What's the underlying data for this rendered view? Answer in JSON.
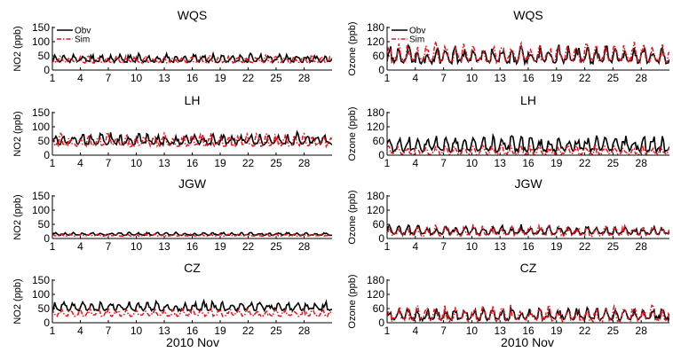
{
  "figure": {
    "xlabel_left": "2010 Nov",
    "xlabel_right": "2010 Nov"
  },
  "chart_data": [
    {
      "type": "line",
      "title": "WQS",
      "ylabel": "NO2 (ppb)",
      "ylim": [
        0,
        150
      ],
      "yticks": [
        0,
        50,
        100,
        150
      ],
      "xlim": [
        1,
        31
      ],
      "xticks": [
        1,
        4,
        7,
        10,
        13,
        16,
        19,
        22,
        25,
        28
      ],
      "legend": "top-left",
      "series": [
        {
          "name": "Obv",
          "color": "#000000",
          "style": "solid",
          "base": 30,
          "amp": 22,
          "phase": 0.0,
          "seed": 11
        },
        {
          "name": "Sim",
          "color": "#e8141c",
          "style": "dashed",
          "base": 27,
          "amp": 20,
          "phase": 0.35,
          "seed": 12
        }
      ]
    },
    {
      "type": "line",
      "title": "WQS",
      "ylabel": "Ozone (ppb)",
      "ylim": [
        0,
        180
      ],
      "yticks": [
        0,
        60,
        120,
        180
      ],
      "xlim": [
        1,
        31
      ],
      "xticks": [
        1,
        4,
        7,
        10,
        13,
        16,
        19,
        22,
        25,
        28
      ],
      "legend": "top-left",
      "series": [
        {
          "name": "Obv",
          "color": "#000000",
          "style": "solid",
          "base": 35,
          "amp": 55,
          "phase": 0.0,
          "seed": 21
        },
        {
          "name": "Sim",
          "color": "#e8141c",
          "style": "dashed",
          "base": 40,
          "amp": 60,
          "phase": 0.05,
          "seed": 22
        }
      ]
    },
    {
      "type": "line",
      "title": "LH",
      "ylabel": "NO2 (ppb)",
      "ylim": [
        0,
        150
      ],
      "yticks": [
        0,
        50,
        100,
        150
      ],
      "xlim": [
        1,
        31
      ],
      "xticks": [
        1,
        4,
        7,
        10,
        13,
        16,
        19,
        22,
        25,
        28
      ],
      "series": [
        {
          "name": "Obv",
          "color": "#000000",
          "style": "solid",
          "base": 40,
          "amp": 30,
          "phase": 0.0,
          "seed": 31
        },
        {
          "name": "Sim",
          "color": "#e8141c",
          "style": "dashed",
          "base": 35,
          "amp": 35,
          "phase": 0.3,
          "seed": 32
        }
      ]
    },
    {
      "type": "line",
      "title": "LH",
      "ylabel": "Ozone (ppb)",
      "ylim": [
        0,
        180
      ],
      "yticks": [
        0,
        60,
        120,
        180
      ],
      "xlim": [
        1,
        31
      ],
      "xticks": [
        1,
        4,
        7,
        10,
        13,
        16,
        19,
        22,
        25,
        28
      ],
      "series": [
        {
          "name": "Obv",
          "color": "#000000",
          "style": "solid",
          "base": 20,
          "amp": 50,
          "phase": 0.0,
          "seed": 41
        },
        {
          "name": "Sim",
          "color": "#e8141c",
          "style": "dashed",
          "base": 5,
          "amp": 30,
          "phase": 0.1,
          "seed": 42
        }
      ]
    },
    {
      "type": "line",
      "title": "JGW",
      "ylabel": "NO2 (ppb)",
      "ylim": [
        0,
        150
      ],
      "yticks": [
        0,
        50,
        100,
        150
      ],
      "xlim": [
        1,
        31
      ],
      "xticks": [
        1,
        4,
        7,
        10,
        13,
        16,
        19,
        22,
        25,
        28
      ],
      "series": [
        {
          "name": "Obv",
          "color": "#000000",
          "style": "solid",
          "base": 12,
          "amp": 8,
          "phase": 0.0,
          "seed": 51
        },
        {
          "name": "Sim",
          "color": "#e8141c",
          "style": "dashed",
          "base": 9,
          "amp": 6,
          "phase": 0.3,
          "seed": 52
        }
      ]
    },
    {
      "type": "line",
      "title": "JGW",
      "ylabel": "Ozone (ppb)",
      "ylim": [
        0,
        180
      ],
      "yticks": [
        0,
        60,
        120,
        180
      ],
      "xlim": [
        1,
        31
      ],
      "xticks": [
        1,
        4,
        7,
        10,
        13,
        16,
        19,
        22,
        25,
        28
      ],
      "series": [
        {
          "name": "Obv",
          "color": "#000000",
          "style": "solid",
          "base": 20,
          "amp": 28,
          "phase": 0.0,
          "seed": 61
        },
        {
          "name": "Sim",
          "color": "#e8141c",
          "style": "dashed",
          "base": 15,
          "amp": 32,
          "phase": 0.05,
          "seed": 62
        }
      ]
    },
    {
      "type": "line",
      "title": "CZ",
      "ylabel": "NO2 (ppb)",
      "ylim": [
        0,
        150
      ],
      "yticks": [
        0,
        50,
        100,
        150
      ],
      "xlim": [
        1,
        31
      ],
      "xticks": [
        1,
        4,
        7,
        10,
        13,
        16,
        19,
        22,
        25,
        28
      ],
      "series": [
        {
          "name": "Obv",
          "color": "#000000",
          "style": "solid",
          "base": 45,
          "amp": 25,
          "phase": 0.0,
          "seed": 71
        },
        {
          "name": "Sim",
          "color": "#e8141c",
          "style": "dashed",
          "base": 25,
          "amp": 20,
          "phase": 0.3,
          "seed": 72
        }
      ]
    },
    {
      "type": "line",
      "title": "CZ",
      "ylabel": "Ozone (ppb)",
      "ylim": [
        0,
        180
      ],
      "yticks": [
        0,
        60,
        120,
        180
      ],
      "xlim": [
        1,
        31
      ],
      "xticks": [
        1,
        4,
        7,
        10,
        13,
        16,
        19,
        22,
        25,
        28
      ],
      "series": [
        {
          "name": "Obv",
          "color": "#000000",
          "style": "solid",
          "base": 15,
          "amp": 40,
          "phase": 0.0,
          "seed": 81
        },
        {
          "name": "Sim",
          "color": "#e8141c",
          "style": "dashed",
          "base": 12,
          "amp": 48,
          "phase": 0.05,
          "seed": 82
        }
      ]
    }
  ]
}
